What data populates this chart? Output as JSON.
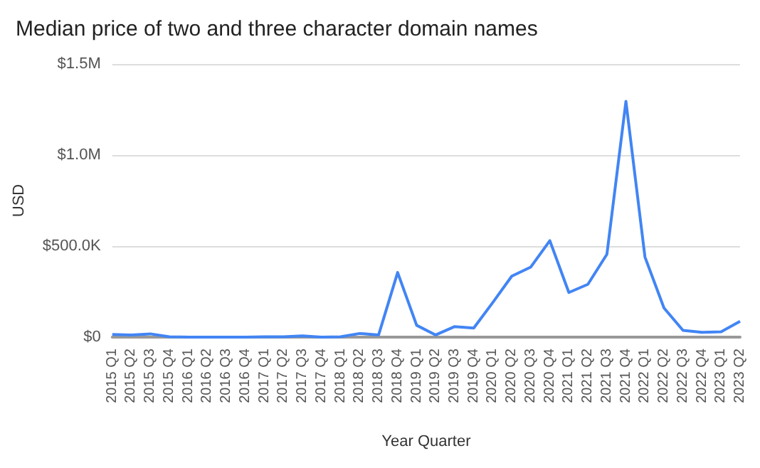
{
  "chart_data": {
    "type": "line",
    "title": "Median price of two and three character domain names",
    "xlabel": "Year Quarter",
    "ylabel": "USD",
    "categories": [
      "2015 Q1",
      "2015 Q2",
      "2015 Q3",
      "2015 Q4",
      "2016 Q1",
      "2016 Q2",
      "2016 Q3",
      "2016 Q4",
      "2017 Q1",
      "2017 Q2",
      "2017 Q3",
      "2017 Q4",
      "2018 Q1",
      "2018 Q2",
      "2018 Q3",
      "2018 Q4",
      "2019 Q1",
      "2019 Q2",
      "2019 Q3",
      "2019 Q4",
      "2020 Q1",
      "2020 Q2",
      "2020 Q3",
      "2020 Q4",
      "2021 Q1",
      "2021 Q2",
      "2021 Q3",
      "2021 Q4",
      "2022 Q1",
      "2022 Q2",
      "2022 Q3",
      "2022 Q4",
      "2023 Q1",
      "2023 Q2"
    ],
    "series": [
      {
        "color": "#4285f4",
        "values": [
          15000,
          12000,
          18000,
          2000,
          0,
          0,
          0,
          0,
          2000,
          2000,
          7000,
          0,
          2000,
          20000,
          12000,
          355000,
          65000,
          12000,
          58000,
          50000,
          190000,
          335000,
          385000,
          530000,
          245000,
          290000,
          455000,
          1295000,
          440000,
          160000,
          37000,
          26000,
          29000,
          87000
        ]
      }
    ],
    "ylim": [
      0,
      1500000
    ],
    "yticks": [
      {
        "value": 0,
        "label": "$0"
      },
      {
        "value": 500000,
        "label": "$500.0K"
      },
      {
        "value": 1000000,
        "label": "$1.0M"
      },
      {
        "value": 1500000,
        "label": "$1.5M"
      }
    ],
    "grid": "y",
    "marker": "none",
    "line_style": "solid"
  }
}
